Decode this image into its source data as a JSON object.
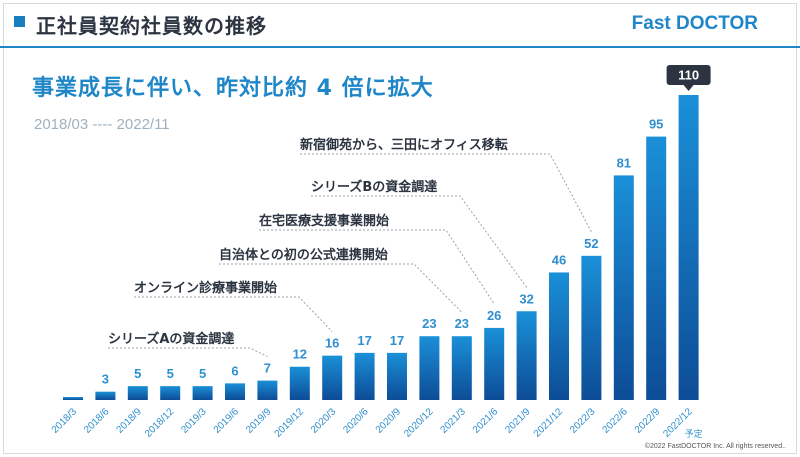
{
  "header": {
    "title": "正社員契約社員数の推移",
    "brand": "Fast DOCTOR"
  },
  "headline": "事業成長に伴い、昨対比約 4 倍に拡大",
  "period": "2018/03 ---- 2022/11",
  "footnote": "©2022 FastDOCTOR Inc. All rights reserved..",
  "colors": {
    "accent": "#1f86c8",
    "bar_top": "#1a90d8",
    "bar_bottom": "#0d4c96",
    "label": "#2f8fcf"
  },
  "chart_data": {
    "type": "bar",
    "categories": [
      "2018/3",
      "2018/6",
      "2018/9",
      "2018/12",
      "2019/3",
      "2019/6",
      "2019/9",
      "2019/12",
      "2020/3",
      "2020/6",
      "2020/9",
      "2020/12",
      "2021/3",
      "2021/6",
      "2021/9",
      "2021/12",
      "2022/3",
      "2022/6",
      "2022/9",
      "2022/12"
    ],
    "values": [
      1,
      3,
      5,
      5,
      5,
      6,
      7,
      12,
      16,
      17,
      17,
      23,
      23,
      26,
      32,
      46,
      52,
      81,
      95,
      110
    ],
    "value_labels": [
      "",
      "3",
      "5",
      "5",
      "5",
      "6",
      "7",
      "12",
      "16",
      "17",
      "17",
      "23",
      "23",
      "26",
      "32",
      "46",
      "52",
      "81",
      "95",
      "110"
    ],
    "last_bar_note": "予定",
    "milestones": [
      {
        "text": "シリーズAの資金調達",
        "category_index": 6
      },
      {
        "text": "オンライン診療事業開始",
        "category_index": 8
      },
      {
        "text": "自治体との初の公式連携開始",
        "category_index": 12
      },
      {
        "text": "在宅医療支援事業開始",
        "category_index": 13
      },
      {
        "text": "シリーズBの資金調達",
        "category_index": 14
      },
      {
        "text": "新宿御苑から、三田にオフィス移転",
        "category_index": 16
      }
    ],
    "ylim": [
      0,
      110
    ],
    "grid": false,
    "legend": "none"
  }
}
